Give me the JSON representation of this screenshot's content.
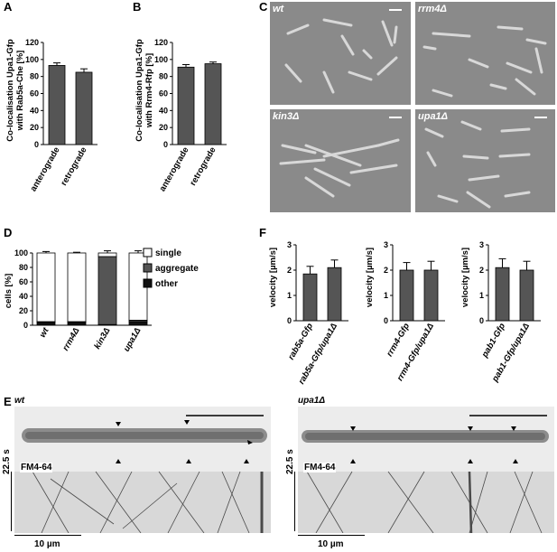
{
  "panels": {
    "A": {
      "label": "A",
      "ylabel_line1": "Co-localisation Upa1-Gfp",
      "ylabel_line2": "with Rab5a-Che [%]",
      "yticks": [
        "0",
        "20",
        "40",
        "60",
        "80",
        "100",
        "120"
      ]
    },
    "B": {
      "label": "B",
      "ylabel_line1": "Co-localisation Upa1-Gfp",
      "ylabel_line2": "with Rrm4-Rfp [%]",
      "yticks": [
        "0",
        "20",
        "40",
        "60",
        "80",
        "100",
        "120"
      ]
    },
    "C": {
      "label": "C",
      "images": [
        "wt",
        "rrm4Δ",
        "kin3Δ",
        "upa1Δ"
      ]
    },
    "D": {
      "label": "D",
      "ylabel": "cells [%]",
      "yticks": [
        "0",
        "20",
        "40",
        "60",
        "80",
        "100"
      ],
      "legend": [
        "single",
        "aggregate",
        "other"
      ]
    },
    "E": {
      "label": "E",
      "left_title": "wt",
      "right_title": "upa1Δ",
      "stain": "FM4-64",
      "time_label": "22.5 s",
      "distance_label": "10 µm"
    },
    "F": {
      "label": "F",
      "ylabel": "velocity [µm/s]",
      "yticks": [
        "0",
        "1",
        "2",
        "3"
      ]
    }
  },
  "chart_data": [
    {
      "panel": "A",
      "type": "bar",
      "categories": [
        "anterograde",
        "retrograde"
      ],
      "values": [
        93,
        85
      ],
      "errors": [
        3,
        4
      ],
      "ylim": [
        0,
        120
      ]
    },
    {
      "panel": "B",
      "type": "bar",
      "categories": [
        "anterograde",
        "retrograde"
      ],
      "values": [
        91,
        95
      ],
      "errors": [
        3,
        2
      ],
      "ylim": [
        0,
        120
      ]
    },
    {
      "panel": "D",
      "type": "bar",
      "categories": [
        "wt",
        "rrm4Δ",
        "kin3Δ",
        "upa1Δ"
      ],
      "stacked": true,
      "series": [
        {
          "name": "other",
          "values": [
            4,
            4,
            1,
            5
          ],
          "color": "#111111"
        },
        {
          "name": "aggregate",
          "values": [
            1,
            1,
            94,
            2
          ],
          "color": "#555555"
        },
        {
          "name": "single",
          "values": [
            95,
            95,
            5,
            93
          ],
          "color": "#ffffff"
        }
      ],
      "errors": [
        2,
        1,
        3,
        3
      ],
      "ylim": [
        0,
        100
      ]
    },
    {
      "panel": "F",
      "type": "bar",
      "categories": [
        "rab5a-Gfp",
        "rab5a-Gfp/upa1Δ"
      ],
      "values": [
        1.85,
        2.1
      ],
      "errors": [
        0.3,
        0.3
      ],
      "ylim": [
        0,
        3
      ]
    },
    {
      "panel": "F",
      "type": "bar",
      "categories": [
        "rrm4-Gfp",
        "rrm4-Gfp/upa1Δ"
      ],
      "values": [
        2.0,
        2.0
      ],
      "errors": [
        0.3,
        0.35
      ],
      "ylim": [
        0,
        3
      ]
    },
    {
      "panel": "F",
      "type": "bar",
      "categories": [
        "pab1-Gfp",
        "pab1-Gfp/upa1Δ"
      ],
      "values": [
        2.1,
        2.0
      ],
      "errors": [
        0.35,
        0.35
      ],
      "ylim": [
        0,
        3
      ]
    }
  ]
}
